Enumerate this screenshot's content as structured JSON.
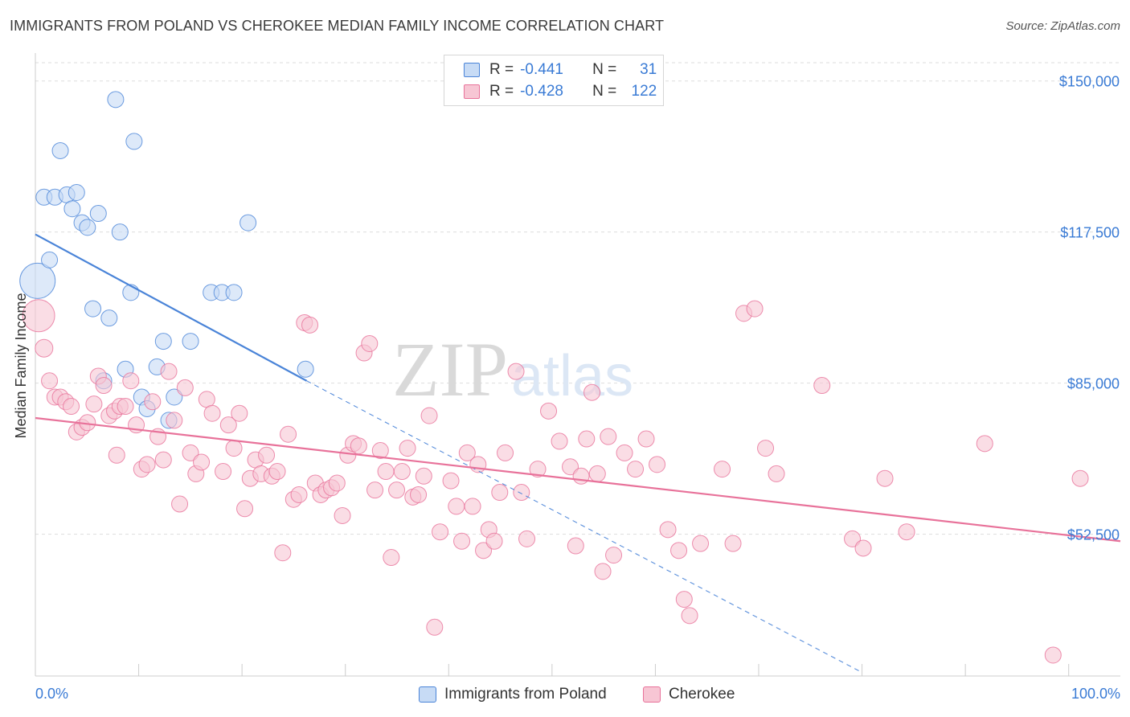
{
  "chart_data": {
    "type": "scatter",
    "title": "IMMIGRANTS FROM POLAND VS CHEROKEE MEDIAN FAMILY INCOME CORRELATION CHART",
    "source": "Source: ZipAtlas.com",
    "ylabel": "Median Family Income",
    "xlabel": "",
    "xlim": [
      0,
      100
    ],
    "ylim": [
      22000,
      156000
    ],
    "x_tick_labels": {
      "min": "0.0%",
      "max": "100.0%"
    },
    "y_ticks": [
      {
        "value": 150000,
        "label": "$150,000"
      },
      {
        "value": 117500,
        "label": "$117,500"
      },
      {
        "value": 85000,
        "label": "$85,000"
      },
      {
        "value": 52500,
        "label": "$52,500"
      }
    ],
    "grid": true,
    "watermark": {
      "zip": "ZIP",
      "atlas": "atlas"
    },
    "series": [
      {
        "name": "Immigrants from Poland",
        "color": "#4a84d8",
        "fill": "#c7dbf5",
        "stats": {
          "r_label": "R =",
          "r_value": "-0.441",
          "n_label": "N =",
          "n_value": "31"
        },
        "trend": {
          "x0": 0,
          "y0": 117000,
          "x1": 25,
          "y1": 85500,
          "dash_x1": 76,
          "dash_y1": 23000
        },
        "points": [
          [
            0.2,
            107000,
            22
          ],
          [
            7.4,
            146000,
            10
          ],
          [
            2.3,
            135000,
            10
          ],
          [
            9.1,
            137000,
            10
          ],
          [
            0.8,
            125000,
            10
          ],
          [
            1.8,
            125000,
            10
          ],
          [
            2.9,
            125500,
            10
          ],
          [
            3.8,
            126000,
            10
          ],
          [
            3.4,
            122500,
            10
          ],
          [
            5.8,
            121500,
            10
          ],
          [
            4.3,
            119500,
            10
          ],
          [
            4.8,
            118500,
            10
          ],
          [
            7.8,
            117500,
            10
          ],
          [
            19.6,
            119500,
            10
          ],
          [
            1.3,
            111500,
            10
          ],
          [
            8.8,
            104500,
            10
          ],
          [
            16.2,
            104500,
            10
          ],
          [
            17.2,
            104500,
            10
          ],
          [
            18.3,
            104500,
            10
          ],
          [
            5.3,
            101000,
            10
          ],
          [
            6.8,
            99000,
            10
          ],
          [
            11.8,
            94000,
            10
          ],
          [
            14.3,
            94000,
            10
          ],
          [
            8.3,
            88000,
            10
          ],
          [
            11.2,
            88500,
            10
          ],
          [
            6.3,
            85500,
            10
          ],
          [
            9.8,
            82000,
            10
          ],
          [
            12.8,
            82000,
            10
          ],
          [
            10.3,
            79500,
            10
          ],
          [
            12.3,
            77000,
            10
          ],
          [
            24.9,
            88000,
            10
          ]
        ]
      },
      {
        "name": "Cherokee",
        "color": "#e8729a",
        "fill": "#f7c6d4",
        "stats": {
          "r_label": "R =",
          "r_value": "-0.428",
          "n_label": "N =",
          "n_value": "122"
        },
        "trend": {
          "x0": 0,
          "y0": 77500,
          "x1": 100,
          "y1": 51000
        },
        "points": [
          [
            0.3,
            99500,
            20
          ],
          [
            0.8,
            92500,
            11
          ],
          [
            1.3,
            85500,
            10
          ],
          [
            1.8,
            82000,
            10
          ],
          [
            2.3,
            82000,
            10
          ],
          [
            2.8,
            81000,
            10
          ],
          [
            3.3,
            80000,
            10
          ],
          [
            3.8,
            74500,
            10
          ],
          [
            4.3,
            75500,
            10
          ],
          [
            4.8,
            76500,
            10
          ],
          [
            5.4,
            80500,
            10
          ],
          [
            5.8,
            86500,
            10
          ],
          [
            6.3,
            84500,
            10
          ],
          [
            6.8,
            78000,
            10
          ],
          [
            7.3,
            79000,
            10
          ],
          [
            7.5,
            69500,
            10
          ],
          [
            7.8,
            80000,
            10
          ],
          [
            8.3,
            80000,
            10
          ],
          [
            8.8,
            85500,
            10
          ],
          [
            9.3,
            76000,
            10
          ],
          [
            9.8,
            66500,
            10
          ],
          [
            10.3,
            67500,
            10
          ],
          [
            10.8,
            81000,
            10
          ],
          [
            11.3,
            73500,
            10
          ],
          [
            11.8,
            68500,
            10
          ],
          [
            12.3,
            87500,
            10
          ],
          [
            12.8,
            77000,
            10
          ],
          [
            13.3,
            59000,
            10
          ],
          [
            13.8,
            84000,
            10
          ],
          [
            14.3,
            70000,
            10
          ],
          [
            14.8,
            65500,
            10
          ],
          [
            15.3,
            68000,
            10
          ],
          [
            15.8,
            81500,
            10
          ],
          [
            16.3,
            78500,
            10
          ],
          [
            17.3,
            66000,
            10
          ],
          [
            17.8,
            76000,
            10
          ],
          [
            18.3,
            71000,
            10
          ],
          [
            18.8,
            78500,
            10
          ],
          [
            19.3,
            58000,
            10
          ],
          [
            19.8,
            64500,
            10
          ],
          [
            20.3,
            68500,
            10
          ],
          [
            20.8,
            65500,
            10
          ],
          [
            21.3,
            69500,
            10
          ],
          [
            21.8,
            65000,
            10
          ],
          [
            22.3,
            66000,
            10
          ],
          [
            22.8,
            48500,
            10
          ],
          [
            23.3,
            74000,
            10
          ],
          [
            23.8,
            60000,
            10
          ],
          [
            24.3,
            61000,
            10
          ],
          [
            24.8,
            98000,
            10
          ],
          [
            25.3,
            97500,
            10
          ],
          [
            25.8,
            63500,
            10
          ],
          [
            26.3,
            61000,
            10
          ],
          [
            26.8,
            62000,
            10
          ],
          [
            27.3,
            62500,
            10
          ],
          [
            27.8,
            63500,
            10
          ],
          [
            28.3,
            56500,
            10
          ],
          [
            28.8,
            69500,
            10
          ],
          [
            29.3,
            72000,
            10
          ],
          [
            29.8,
            71500,
            10
          ],
          [
            30.3,
            91500,
            10
          ],
          [
            30.8,
            93500,
            10
          ],
          [
            31.3,
            62000,
            10
          ],
          [
            31.8,
            70500,
            10
          ],
          [
            32.3,
            66000,
            10
          ],
          [
            32.8,
            47500,
            10
          ],
          [
            33.3,
            62000,
            10
          ],
          [
            33.8,
            66000,
            10
          ],
          [
            34.3,
            71000,
            10
          ],
          [
            34.8,
            60500,
            10
          ],
          [
            35.3,
            61000,
            10
          ],
          [
            35.8,
            65000,
            10
          ],
          [
            36.3,
            78000,
            10
          ],
          [
            36.8,
            32500,
            10
          ],
          [
            37.3,
            53000,
            10
          ],
          [
            38.3,
            64000,
            10
          ],
          [
            38.8,
            58500,
            10
          ],
          [
            39.3,
            51000,
            10
          ],
          [
            39.8,
            70000,
            10
          ],
          [
            40.3,
            58500,
            10
          ],
          [
            40.8,
            67500,
            10
          ],
          [
            41.3,
            49000,
            10
          ],
          [
            41.8,
            53500,
            10
          ],
          [
            42.3,
            51000,
            10
          ],
          [
            42.8,
            61500,
            10
          ],
          [
            43.3,
            70000,
            10
          ],
          [
            44.3,
            87500,
            10
          ],
          [
            44.8,
            61500,
            10
          ],
          [
            45.3,
            51500,
            10
          ],
          [
            46.3,
            66500,
            10
          ],
          [
            47.3,
            79000,
            10
          ],
          [
            48.3,
            72500,
            10
          ],
          [
            49.3,
            67000,
            10
          ],
          [
            49.8,
            50000,
            10
          ],
          [
            50.3,
            65000,
            10
          ],
          [
            50.8,
            73000,
            10
          ],
          [
            51.3,
            83000,
            10
          ],
          [
            51.8,
            65500,
            10
          ],
          [
            52.3,
            44500,
            10
          ],
          [
            52.8,
            73500,
            10
          ],
          [
            53.3,
            48000,
            10
          ],
          [
            54.3,
            70000,
            10
          ],
          [
            55.3,
            66500,
            10
          ],
          [
            56.3,
            73000,
            10
          ],
          [
            57.3,
            67500,
            10
          ],
          [
            58.3,
            53500,
            10
          ],
          [
            59.3,
            49000,
            10
          ],
          [
            59.8,
            38500,
            10
          ],
          [
            60.3,
            35000,
            10
          ],
          [
            61.3,
            50500,
            10
          ],
          [
            63.3,
            66500,
            10
          ],
          [
            64.3,
            50500,
            10
          ],
          [
            65.3,
            100000,
            10
          ],
          [
            66.3,
            101000,
            10
          ],
          [
            67.3,
            71000,
            10
          ],
          [
            68.3,
            65500,
            10
          ],
          [
            72.5,
            84500,
            10
          ],
          [
            75.3,
            51500,
            10
          ],
          [
            76.3,
            49500,
            10
          ],
          [
            78.3,
            64500,
            10
          ],
          [
            80.3,
            53000,
            10
          ],
          [
            87.5,
            72000,
            10
          ],
          [
            93.8,
            26500,
            10
          ],
          [
            96.3,
            64500,
            10
          ]
        ]
      }
    ]
  }
}
